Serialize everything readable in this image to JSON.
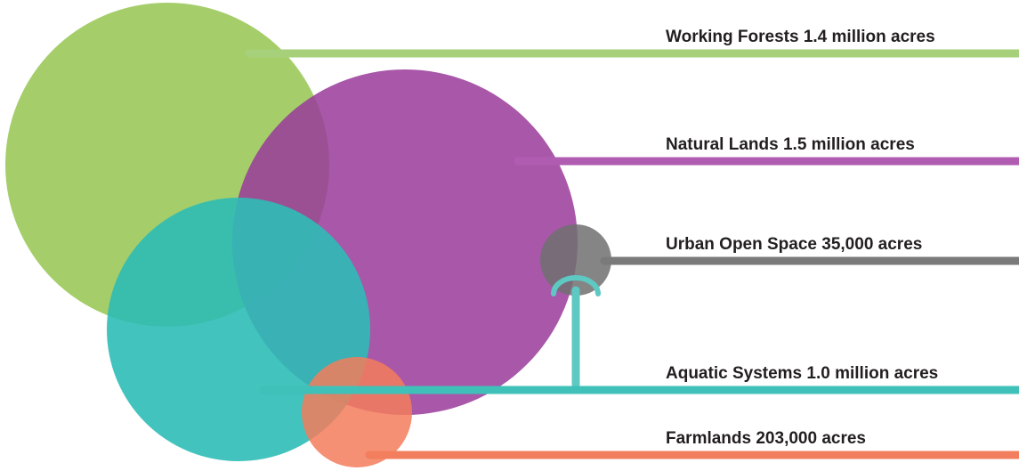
{
  "items": [
    {
      "label": "Working Forests 1.4 million acres"
    },
    {
      "label": "Natural Lands 1.5 million acres"
    },
    {
      "label": "Urban Open Space 35,000 acres"
    },
    {
      "label": "Aquatic Systems 1.0 million acres"
    },
    {
      "label": "Farmlands 203,000 acres"
    }
  ]
}
